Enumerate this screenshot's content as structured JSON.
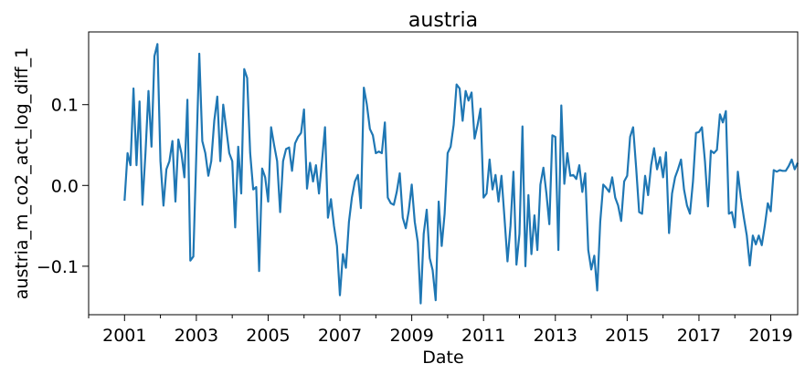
{
  "chart_data": {
    "type": "line",
    "title": "austria",
    "xlabel": "Date",
    "ylabel": "austria_m_co2_act_log_diff_1",
    "xlim": [
      "2000-01",
      "2019-10"
    ],
    "ylim": [
      -0.16,
      0.19
    ],
    "x_ticks": [
      "2001",
      "2003",
      "2005",
      "2007",
      "2009",
      "2011",
      "2013",
      "2015",
      "2017",
      "2019"
    ],
    "y_ticks": [
      {
        "value": 0.1,
        "label": "0.1"
      },
      {
        "value": 0.0,
        "label": "0.0"
      },
      {
        "value": -0.1,
        "label": "−0.1"
      }
    ],
    "grid": false,
    "series": [
      {
        "color": "#1f77b4",
        "x": [
          "2001-01",
          "2001-02",
          "2001-03",
          "2001-04",
          "2001-05",
          "2001-06",
          "2001-07",
          "2001-08",
          "2001-09",
          "2001-10",
          "2001-11",
          "2001-12",
          "2002-01",
          "2002-02",
          "2002-03",
          "2002-04",
          "2002-05",
          "2002-06",
          "2002-07",
          "2002-08",
          "2002-09",
          "2002-10",
          "2002-11",
          "2002-12",
          "2003-01",
          "2003-02",
          "2003-03",
          "2003-04",
          "2003-05",
          "2003-06",
          "2003-07",
          "2003-08",
          "2003-09",
          "2003-10",
          "2003-11",
          "2003-12",
          "2004-01",
          "2004-02",
          "2004-03",
          "2004-04",
          "2004-05",
          "2004-06",
          "2004-07",
          "2004-08",
          "2004-09",
          "2004-10",
          "2004-11",
          "2004-12",
          "2005-01",
          "2005-02",
          "2005-03",
          "2005-04",
          "2005-05",
          "2005-06",
          "2005-07",
          "2005-08",
          "2005-09",
          "2005-10",
          "2005-11",
          "2005-12",
          "2006-01",
          "2006-02",
          "2006-03",
          "2006-04",
          "2006-05",
          "2006-06",
          "2006-07",
          "2006-08",
          "2006-09",
          "2006-10",
          "2006-11",
          "2006-12",
          "2007-01",
          "2007-02",
          "2007-03",
          "2007-04",
          "2007-05",
          "2007-06",
          "2007-07",
          "2007-08",
          "2007-09",
          "2007-10",
          "2007-11",
          "2007-12",
          "2008-01",
          "2008-02",
          "2008-03",
          "2008-04",
          "2008-05",
          "2008-06",
          "2008-07",
          "2008-08",
          "2008-09",
          "2008-10",
          "2008-11",
          "2008-12",
          "2009-01",
          "2009-02",
          "2009-03",
          "2009-04",
          "2009-05",
          "2009-06",
          "2009-07",
          "2009-08",
          "2009-09",
          "2009-10",
          "2009-11",
          "2009-12",
          "2010-01",
          "2010-02",
          "2010-03",
          "2010-04",
          "2010-05",
          "2010-06",
          "2010-07",
          "2010-08",
          "2010-09",
          "2010-10",
          "2010-11",
          "2010-12",
          "2011-01",
          "2011-02",
          "2011-03",
          "2011-04",
          "2011-05",
          "2011-06",
          "2011-07",
          "2011-08",
          "2011-09",
          "2011-10",
          "2011-11",
          "2011-12",
          "2012-01",
          "2012-02",
          "2012-03",
          "2012-04",
          "2012-05",
          "2012-06",
          "2012-07",
          "2012-08",
          "2012-09",
          "2012-10",
          "2012-11",
          "2012-12",
          "2013-01",
          "2013-02",
          "2013-03",
          "2013-04",
          "2013-05",
          "2013-06",
          "2013-07",
          "2013-08",
          "2013-09",
          "2013-10",
          "2013-11",
          "2013-12",
          "2014-01",
          "2014-02",
          "2014-03",
          "2014-04",
          "2014-05",
          "2014-06",
          "2014-07",
          "2014-08",
          "2014-09",
          "2014-10",
          "2014-11",
          "2014-12",
          "2015-01",
          "2015-02",
          "2015-03",
          "2015-04",
          "2015-05",
          "2015-06",
          "2015-07",
          "2015-08",
          "2015-09",
          "2015-10",
          "2015-11",
          "2015-12",
          "2016-01",
          "2016-02",
          "2016-03",
          "2016-04",
          "2016-05",
          "2016-06",
          "2016-07",
          "2016-08",
          "2016-09",
          "2016-10",
          "2016-11",
          "2016-12",
          "2017-01",
          "2017-02",
          "2017-03",
          "2017-04",
          "2017-05",
          "2017-06",
          "2017-07",
          "2017-08",
          "2017-09",
          "2017-10",
          "2017-11",
          "2017-12",
          "2018-01",
          "2018-02",
          "2018-03",
          "2018-04",
          "2018-05",
          "2018-06",
          "2018-07",
          "2018-08",
          "2018-09",
          "2018-10",
          "2018-11",
          "2018-12",
          "2019-01",
          "2019-02",
          "2019-03",
          "2019-04",
          "2019-05",
          "2019-06",
          "2019-07",
          "2019-08",
          "2019-09",
          "2019-10"
        ],
        "values": [
          -0.019,
          0.04,
          0.025,
          0.12,
          0.025,
          0.104,
          -0.024,
          0.04,
          0.117,
          0.048,
          0.16,
          0.175,
          0.03,
          -0.025,
          0.02,
          0.03,
          0.055,
          -0.02,
          0.057,
          0.04,
          0.01,
          0.106,
          -0.093,
          -0.088,
          0.04,
          0.163,
          0.055,
          0.04,
          0.012,
          0.03,
          0.08,
          0.11,
          0.03,
          0.1,
          0.07,
          0.04,
          0.03,
          -0.052,
          0.048,
          -0.01,
          0.144,
          0.133,
          0.04,
          -0.005,
          -0.002,
          -0.106,
          0.021,
          0.01,
          -0.02,
          0.072,
          0.05,
          0.03,
          -0.033,
          0.03,
          0.045,
          0.047,
          0.018,
          0.052,
          0.06,
          0.065,
          0.094,
          -0.004,
          0.028,
          0.005,
          0.025,
          -0.01,
          0.03,
          0.072,
          -0.04,
          -0.017,
          -0.05,
          -0.075,
          -0.136,
          -0.085,
          -0.102,
          -0.045,
          -0.015,
          0.005,
          0.013,
          -0.028,
          0.121,
          0.1,
          0.07,
          0.062,
          0.04,
          0.042,
          0.04,
          0.078,
          -0.015,
          -0.022,
          -0.024,
          -0.008,
          0.015,
          -0.04,
          -0.053,
          -0.032,
          0.001,
          -0.045,
          -0.07,
          -0.146,
          -0.06,
          -0.03,
          -0.09,
          -0.105,
          -0.142,
          -0.02,
          -0.075,
          -0.035,
          0.04,
          0.048,
          0.075,
          0.125,
          0.12,
          0.08,
          0.117,
          0.105,
          0.115,
          0.058,
          0.075,
          0.095,
          -0.015,
          -0.01,
          0.032,
          -0.005,
          0.013,
          -0.02,
          0.012,
          -0.04,
          -0.094,
          -0.05,
          0.017,
          -0.098,
          -0.06,
          0.073,
          -0.1,
          -0.012,
          -0.085,
          -0.037,
          -0.08,
          0.001,
          0.022,
          -0.01,
          -0.048,
          0.062,
          0.06,
          -0.08,
          0.099,
          0.002,
          0.04,
          0.012,
          0.013,
          0.008,
          0.025,
          -0.008,
          0.015,
          -0.08,
          -0.104,
          -0.087,
          -0.13,
          -0.045,
          0.001,
          -0.003,
          -0.008,
          0.01,
          -0.015,
          -0.025,
          -0.044,
          0.005,
          0.012,
          0.06,
          0.072,
          0.022,
          -0.033,
          -0.035,
          0.012,
          -0.012,
          0.025,
          0.046,
          0.02,
          0.035,
          0.01,
          0.041,
          -0.059,
          -0.01,
          0.01,
          0.02,
          0.032,
          -0.005,
          -0.025,
          -0.035,
          0.005,
          0.065,
          0.066,
          0.072,
          0.03,
          -0.026,
          0.043,
          0.04,
          0.044,
          0.088,
          0.078,
          0.092,
          -0.035,
          -0.033,
          -0.052,
          0.017,
          -0.015,
          -0.04,
          -0.062,
          -0.099,
          -0.062,
          -0.073,
          -0.062,
          -0.074,
          -0.05,
          -0.022,
          -0.032,
          0.019,
          0.017,
          0.019,
          0.018,
          0.018,
          0.024,
          0.032,
          0.02,
          0.028
        ]
      }
    ]
  }
}
